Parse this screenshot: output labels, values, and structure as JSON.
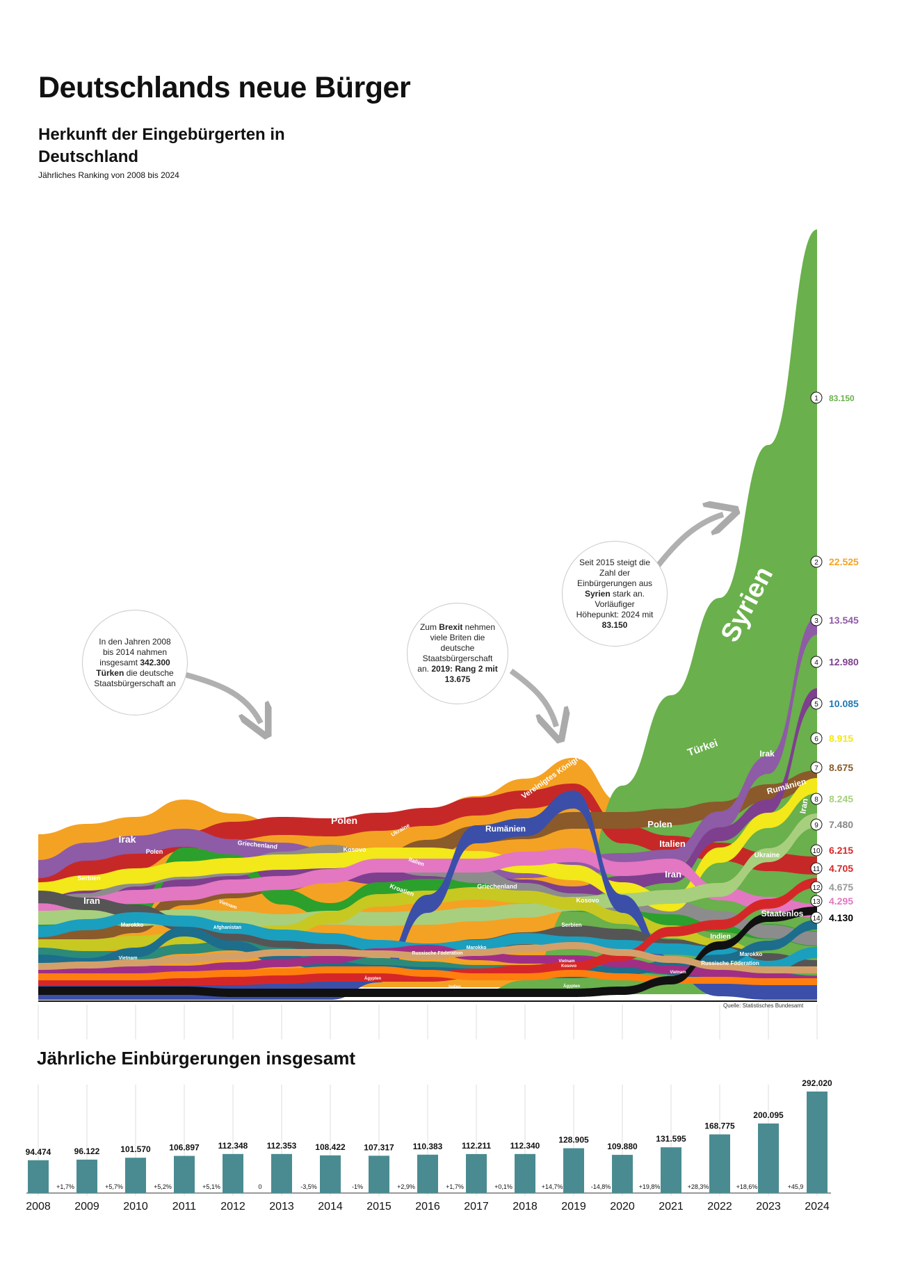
{
  "title": "Deutschlands neue Bürger",
  "subtitle": "Herkunft der Eingebürgerten in Deutschland",
  "subtitle_note": "Jährliches Ranking von 2008 bis 2024",
  "source": "Quelle: Statistisches Bundesamt",
  "annotations": {
    "tuerkei": {
      "pre": "In den Jahren 2008 bis 2014 nahmen insgesamt",
      "bold1": "342.300",
      "bold2": "Türken",
      "post": "die deutsche Staatsbürgerschaft an"
    },
    "brexit": {
      "pre": "Zum",
      "bold1": "Brexit",
      "mid": "nehmen viele Briten die deutsche Staatsbürgerschaft an.",
      "bold2": "2019: Rang 2 mit 13.675"
    },
    "syrien": {
      "pre": "Seit 2015 steigt die Zahl der Einbürgerungen aus",
      "bold1": "Syrien",
      "mid": "stark an. Vorläufiger Höhepunkt: 2024 mit",
      "bold2": "83.150"
    }
  },
  "chart_data": [
    {
      "type": "area",
      "title": "Herkunft der Eingebürgerten in Deutschland",
      "subtitle": "Jährliches Ranking von 2008 bis 2024",
      "x": [
        2008,
        2009,
        2010,
        2011,
        2012,
        2013,
        2014,
        2015,
        2016,
        2017,
        2018,
        2019,
        2020,
        2021,
        2022,
        2023,
        2024
      ],
      "ranking_2024": [
        {
          "rank": "1",
          "name": "Syrien",
          "value": "83.150",
          "color": "#6ab04c"
        },
        {
          "rank": "2",
          "name": "Türkei",
          "value": "22.525",
          "color": "#f4a223"
        },
        {
          "rank": "3",
          "name": "Irak",
          "value": "13.545",
          "color": "#8e5ba6"
        },
        {
          "rank": "4",
          "name": "",
          "value": "12.980",
          "color": "#7e3f8f"
        },
        {
          "rank": "5",
          "name": "",
          "value": "10.085",
          "color": "#1f78b4"
        },
        {
          "rank": "6",
          "name": "",
          "value": "8.915",
          "color": "#f2e81a"
        },
        {
          "rank": "7",
          "name": "Rumänien",
          "value": "8.675",
          "color": "#8a5a2b"
        },
        {
          "rank": "8",
          "name": "Iran",
          "value": "8.245",
          "color": "#a8cf7e"
        },
        {
          "rank": "9",
          "name": "",
          "value": "7.480",
          "color": "#888888"
        },
        {
          "rank": "10",
          "name": "",
          "value": "6.215",
          "color": "#d62728"
        },
        {
          "rank": "11",
          "name": "",
          "value": "4.705",
          "color": "#d62728"
        },
        {
          "rank": "12",
          "name": "",
          "value": "4.675",
          "color": "#999999"
        },
        {
          "rank": "13",
          "name": "",
          "value": "4.295",
          "color": "#e377c2"
        },
        {
          "rank": "14",
          "name": "Staatenlos",
          "value": "4.130",
          "color": "#000000"
        }
      ],
      "stream_labels": [
        "Türkei",
        "Syrien",
        "Polen",
        "Irak",
        "Polen",
        "Griechenland",
        "Kosovo",
        "Ukraine",
        "Italien",
        "Kroatien",
        "Griechenland",
        "Rumänien",
        "Vereinigtes Königreich",
        "Serbien",
        "Iran",
        "Marokko",
        "Vietnam",
        "Afghanistan",
        "Vietnam",
        "Russische Föderation",
        "Marokko",
        "Serbien",
        "Kosovo",
        "Vietnam",
        "Ägypten",
        "Indien",
        "Polen",
        "Italien",
        "Iran",
        "Türkei",
        "Irak",
        "Rumänien",
        "Ukraine",
        "Indien",
        "Marokko",
        "Russische Föderation",
        "Kosovo",
        "Staatenlos",
        "Iran",
        "Ägypten",
        "Vietnam"
      ]
    },
    {
      "type": "bar",
      "title": "Jährliche Einbürgerungen insgesamt",
      "categories": [
        "2008",
        "2009",
        "2010",
        "2011",
        "2012",
        "2013",
        "2014",
        "2015",
        "2016",
        "2017",
        "2018",
        "2019",
        "2020",
        "2021",
        "2022",
        "2023",
        "2024"
      ],
      "values": [
        94474,
        96122,
        101570,
        106897,
        112348,
        112353,
        108422,
        107317,
        110383,
        112211,
        112340,
        128905,
        109880,
        131595,
        168775,
        200095,
        292020
      ],
      "value_labels": [
        "94.474",
        "96.122",
        "101.570",
        "106.897",
        "112.348",
        "112.353",
        "108.422",
        "107.317",
        "110.383",
        "112.211",
        "112.340",
        "128.905",
        "109.880",
        "131.595",
        "168.775",
        "200.095",
        "292.020"
      ],
      "change_labels": [
        "+1,7%",
        "+5,7%",
        "+5,2%",
        "+5,1%",
        "0",
        "-3,5%",
        "-1%",
        "+2,9%",
        "+1,7%",
        "+0,1%",
        "+14,7%",
        "-14,8%",
        "+19,8%",
        "+28,3%",
        "+18,6%",
        "+45,9"
      ],
      "bar_color": "#4a8b92",
      "xlabel": "",
      "ylabel": "",
      "ylim": [
        0,
        300000
      ]
    }
  ]
}
